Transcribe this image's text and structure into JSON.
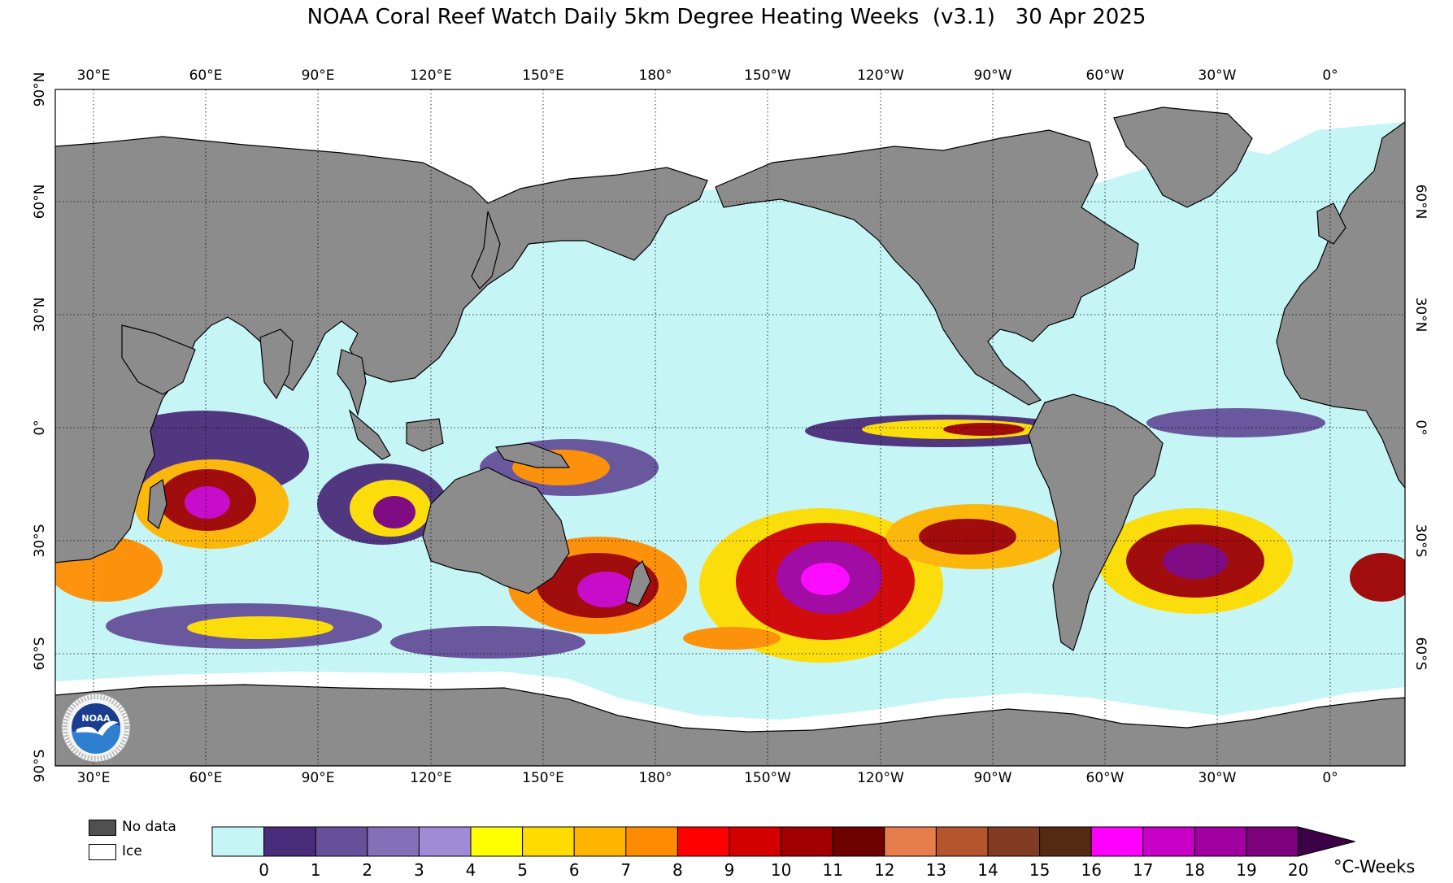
{
  "title": "NOAA Coral Reef Watch Daily 5km Degree Heating Weeks  (v3.1)   30 Apr 2025",
  "logo": {
    "name": "NOAA",
    "ring_text": "NATIONAL OCEANIC AND ATMOSPHERIC ADMINISTRATION · U.S. DEPARTMENT OF COMMERCE"
  },
  "map": {
    "lon_labels": [
      "30°E",
      "60°E",
      "90°E",
      "120°E",
      "150°E",
      "180°",
      "150°W",
      "120°W",
      "90°W",
      "60°W",
      "30°W",
      "0°"
    ],
    "lat_labels_left": [
      "90°N",
      "60°N",
      "30°N",
      "0°",
      "30°S",
      "60°S",
      "90°S"
    ],
    "lat_labels_right": [
      "60°N",
      "30°N",
      "0°",
      "30°S",
      "60°S"
    ],
    "colors": {
      "land": "#8c8c8c",
      "ocean": "#c5f5f5",
      "ice": "#ffffff",
      "no_data": "#505050"
    }
  },
  "legend": {
    "no_data_label": "No data",
    "ice_label": "Ice",
    "units": "°C-Weeks",
    "ticks": [
      "0",
      "1",
      "2",
      "3",
      "4",
      "5",
      "6",
      "7",
      "8",
      "9",
      "10",
      "11",
      "12",
      "13",
      "14",
      "15",
      "16",
      "17",
      "18",
      "19",
      "20"
    ],
    "colors": [
      "#c5f5f5",
      "#4a2d7a",
      "#66509a",
      "#8470b8",
      "#a08cd6",
      "#ffff00",
      "#ffdc00",
      "#ffb400",
      "#ff8c00",
      "#ff0000",
      "#d20000",
      "#a00000",
      "#6e0000",
      "#e67d4b",
      "#b4552d",
      "#823c23",
      "#552a14",
      "#ff00ff",
      "#c800c8",
      "#a000a0",
      "#7d007d"
    ],
    "extend_color": "#3c0046"
  }
}
